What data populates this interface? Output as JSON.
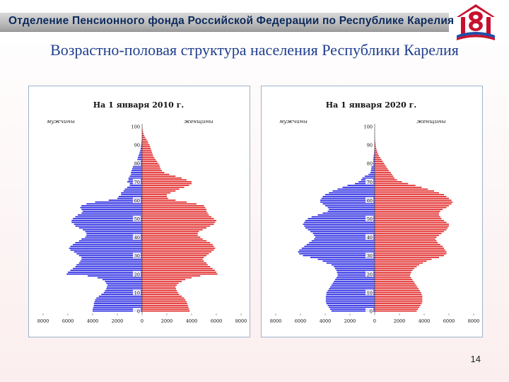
{
  "header": {
    "title": "Отделение Пенсионного фонда Российской Федерации по Республике Карелия"
  },
  "slide": {
    "title": "Возрастно-половая структура населения Республики Карелия",
    "page_number": "14"
  },
  "colors": {
    "male": "#1a1ae0",
    "female": "#e01a1a",
    "panel_border": "#9db3cc"
  },
  "logo": {
    "icon": "pension-fund-logo-icon"
  },
  "chart_data": [
    {
      "type": "population-pyramid",
      "title": "На 1 января 2010 г.",
      "left_label": "мужчины",
      "right_label": "женщины",
      "age_ticks": [
        "0",
        "10",
        "20",
        "30",
        "40",
        "50",
        "60",
        "70",
        "80",
        "90",
        "100"
      ],
      "x_ticks_left": [
        "8000",
        "6000",
        "4000",
        "2000",
        "0"
      ],
      "x_ticks_right": [
        "2000",
        "4000",
        "6000",
        "8000"
      ],
      "xlim": [
        -8000,
        8000
      ],
      "ylim": [
        0,
        100
      ],
      "age_step": 1,
      "male": [
        4000,
        4000,
        3950,
        3900,
        3900,
        3850,
        3800,
        3700,
        3500,
        3300,
        3100,
        3000,
        2900,
        2850,
        2800,
        2900,
        3000,
        3200,
        3600,
        4400,
        6100,
        6000,
        5800,
        5600,
        5400,
        5300,
        5100,
        5000,
        4900,
        4900,
        5100,
        5300,
        5500,
        5800,
        5900,
        5800,
        5600,
        5400,
        5100,
        4900,
        4600,
        4500,
        4500,
        4600,
        4800,
        5100,
        5400,
        5500,
        5700,
        5700,
        5600,
        5400,
        5200,
        4900,
        4800,
        4900,
        5000,
        4900,
        4500,
        3800,
        2700,
        2000,
        1900,
        1700,
        1700,
        1500,
        1400,
        1200,
        1000,
        1000,
        1200,
        1100,
        1100,
        1000,
        900,
        900,
        850,
        800,
        750,
        700,
        500,
        400,
        380,
        350,
        300,
        250,
        200,
        150,
        120,
        100,
        80,
        60,
        40,
        20,
        15,
        10,
        8,
        5,
        3,
        2,
        1
      ],
      "female": [
        3850,
        3800,
        3750,
        3700,
        3650,
        3600,
        3500,
        3400,
        3200,
        3000,
        2900,
        2800,
        2750,
        2700,
        2800,
        2950,
        3200,
        3500,
        4000,
        4700,
        6100,
        6000,
        5900,
        5700,
        5500,
        5300,
        5200,
        5000,
        4900,
        5000,
        5200,
        5400,
        5600,
        5800,
        5900,
        5800,
        5700,
        5500,
        5200,
        4900,
        4700,
        4500,
        4500,
        4600,
        4900,
        5200,
        5500,
        5800,
        5900,
        6000,
        5800,
        5600,
        5400,
        5300,
        5200,
        5200,
        5100,
        5000,
        4400,
        3600,
        2700,
        2100,
        2000,
        2000,
        2300,
        2700,
        3000,
        3400,
        3800,
        4000,
        4000,
        3600,
        3200,
        2700,
        2200,
        1800,
        1600,
        1500,
        1450,
        1400,
        1300,
        1200,
        1100,
        1000,
        900,
        850,
        800,
        750,
        700,
        650,
        600,
        500,
        450,
        350,
        250,
        180,
        120,
        80,
        50,
        30,
        20
      ]
    },
    {
      "type": "population-pyramid",
      "title": "На 1 января 2020 г.",
      "left_label": "мужчины",
      "right_label": "женщины",
      "age_ticks": [
        "0",
        "10",
        "20",
        "30",
        "40",
        "50",
        "60",
        "70",
        "80",
        "90",
        "100"
      ],
      "x_ticks_left": [
        "8000",
        "6000",
        "4000",
        "2000",
        "0"
      ],
      "x_ticks_right": [
        "2000",
        "4000",
        "6000",
        "8000"
      ],
      "xlim": [
        -8000,
        8000
      ],
      "ylim": [
        0,
        100
      ],
      "age_step": 1,
      "male": [
        3500,
        3600,
        3700,
        3800,
        3900,
        3950,
        3950,
        3950,
        3950,
        3900,
        3900,
        3800,
        3700,
        3600,
        3500,
        3400,
        3300,
        3200,
        3100,
        3000,
        3000,
        3050,
        3100,
        3200,
        3300,
        3500,
        3900,
        4200,
        4600,
        5200,
        5800,
        6100,
        6200,
        6100,
        5900,
        5700,
        5500,
        5300,
        5100,
        4900,
        4800,
        4900,
        5000,
        5200,
        5400,
        5600,
        5700,
        5800,
        5700,
        5600,
        5400,
        5100,
        4600,
        4200,
        3800,
        3700,
        3800,
        4000,
        4200,
        4400,
        4400,
        4300,
        4200,
        4000,
        3700,
        3400,
        3000,
        2600,
        2200,
        1600,
        1300,
        1100,
        1000,
        800,
        500,
        350,
        300,
        280,
        260,
        240,
        200,
        150,
        120,
        100,
        80,
        60,
        40,
        30,
        20,
        15,
        10,
        8,
        5,
        3,
        2,
        1,
        1,
        0,
        0,
        0,
        0
      ],
      "female": [
        3400,
        3500,
        3600,
        3700,
        3800,
        3850,
        3850,
        3850,
        3850,
        3800,
        3750,
        3650,
        3550,
        3450,
        3350,
        3250,
        3150,
        3050,
        2950,
        2850,
        2900,
        2950,
        3050,
        3200,
        3400,
        3600,
        3900,
        4200,
        4600,
        5200,
        5600,
        5800,
        5800,
        5700,
        5600,
        5500,
        5300,
        5100,
        5000,
        4900,
        5000,
        5200,
        5400,
        5600,
        5800,
        5900,
        6000,
        6000,
        5800,
        5600,
        5400,
        5300,
        5200,
        5200,
        5300,
        5500,
        5800,
        6000,
        6200,
        6300,
        6200,
        6000,
        5800,
        5600,
        5200,
        4800,
        4300,
        3800,
        3300,
        2700,
        2200,
        1800,
        1600,
        1500,
        1400,
        1300,
        1150,
        1050,
        950,
        850,
        750,
        650,
        550,
        450,
        350,
        280,
        220,
        170,
        130,
        100,
        80,
        60,
        40,
        25,
        15,
        10,
        6,
        4,
        2,
        1,
        0
      ]
    }
  ]
}
